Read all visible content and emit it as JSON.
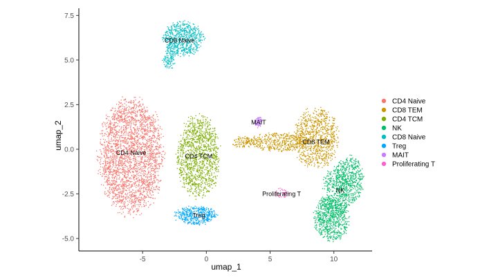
{
  "chart_data": {
    "type": "scatter",
    "title": "",
    "xlabel": "umap_1",
    "ylabel": "umap_2",
    "xlim": [
      -10,
      13
    ],
    "ylim": [
      -5.7,
      7.9
    ],
    "x_ticks": [
      -5,
      0,
      5,
      10
    ],
    "x_tick_labels": [
      "-5",
      "0",
      "5",
      "10"
    ],
    "y_ticks": [
      -5.0,
      -2.5,
      0.0,
      2.5,
      5.0,
      7.5
    ],
    "y_tick_labels": [
      "-5.0",
      "-2.5",
      "0.0",
      "2.5",
      "5.0",
      "7.5"
    ],
    "grid": false,
    "legend_position": "right",
    "series": [
      {
        "name": "CD4 Naive",
        "color": "#F8766D",
        "label": "CD4 Naive",
        "label_at": [
          -5.9,
          -0.2
        ],
        "blobs": [
          {
            "cx": -5.9,
            "cy": -0.4,
            "rx": 2.4,
            "ry": 3.1,
            "n": 2600
          }
        ]
      },
      {
        "name": "CD8 TEM",
        "color": "#CD9600",
        "label": "CD8 TEM",
        "label_at": [
          8.6,
          0.4
        ],
        "blobs": [
          {
            "cx": 8.6,
            "cy": 0.6,
            "rx": 1.7,
            "ry": 1.6,
            "n": 900
          },
          {
            "cx": 5.6,
            "cy": 0.4,
            "rx": 2.2,
            "ry": 0.5,
            "n": 420
          },
          {
            "cx": 2.9,
            "cy": 0.4,
            "rx": 0.9,
            "ry": 0.3,
            "n": 100
          }
        ]
      },
      {
        "name": "CD4 TCM",
        "color": "#7CAE00",
        "label": "CD4 TCM",
        "label_at": [
          -0.6,
          -0.4
        ],
        "blobs": [
          {
            "cx": -0.6,
            "cy": -0.4,
            "rx": 1.6,
            "ry": 2.2,
            "n": 1200
          }
        ]
      },
      {
        "name": "NK",
        "color": "#00BE67",
        "label": "NK",
        "label_at": [
          10.5,
          -2.3
        ],
        "blobs": [
          {
            "cx": 11.2,
            "cy": -1.7,
            "rx": 1.1,
            "ry": 1.3,
            "n": 500
          },
          {
            "cx": 9.8,
            "cy": -3.9,
            "rx": 1.3,
            "ry": 1.2,
            "n": 650
          },
          {
            "cx": 10.2,
            "cy": -2.5,
            "rx": 1.1,
            "ry": 1.5,
            "n": 400
          }
        ]
      },
      {
        "name": "CD8 Naive",
        "color": "#00BFC4",
        "label": "CD8 Naive",
        "label_at": [
          -2.1,
          6.1
        ],
        "blobs": [
          {
            "cx": -1.8,
            "cy": 6.2,
            "rx": 1.5,
            "ry": 0.9,
            "n": 650
          },
          {
            "cx": -2.9,
            "cy": 5.1,
            "rx": 0.5,
            "ry": 0.6,
            "n": 110
          }
        ]
      },
      {
        "name": "Treg",
        "color": "#00A9FF",
        "label": "Treg",
        "label_at": [
          -0.6,
          -3.7
        ],
        "blobs": [
          {
            "cx": -0.8,
            "cy": -3.7,
            "rx": 1.6,
            "ry": 0.5,
            "n": 420
          }
        ]
      },
      {
        "name": "MAIT",
        "color": "#C77CFF",
        "label": "MAIT",
        "label_at": [
          4.1,
          1.5
        ],
        "blobs": [
          {
            "cx": 4.1,
            "cy": 1.5,
            "rx": 0.3,
            "ry": 0.3,
            "n": 70
          }
        ]
      },
      {
        "name": "Proliferating T",
        "color": "#FF61CC",
        "label": "Proliferating T",
        "label_at": [
          5.9,
          -2.5
        ],
        "blobs": [
          {
            "cx": 5.9,
            "cy": -2.5,
            "rx": 0.5,
            "ry": 0.3,
            "n": 35
          }
        ]
      }
    ]
  }
}
